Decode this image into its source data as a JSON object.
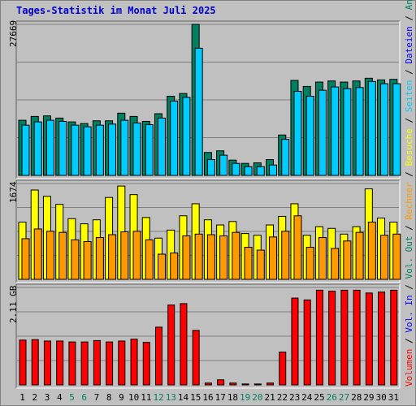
{
  "chart_data": {
    "type": "bar",
    "title": "Tages-Statistik im Monat Juli 2025",
    "x": [
      "1",
      "2",
      "3",
      "4",
      "5",
      "6",
      "7",
      "8",
      "9",
      "10",
      "11",
      "12",
      "13",
      "14",
      "15",
      "16",
      "17",
      "18",
      "19",
      "20",
      "21",
      "22",
      "23",
      "24",
      "25",
      "26",
      "27",
      "28",
      "29",
      "30",
      "31"
    ],
    "weekend_days": [
      "5",
      "6",
      "12",
      "13",
      "19",
      "20",
      "26",
      "27"
    ],
    "panels": [
      {
        "id": "top",
        "max_label": "27669",
        "ylim": [
          0,
          27669
        ],
        "series": [
          {
            "name": "Anfragen",
            "color": "#008060",
            "values": [
              10100,
              10800,
              10900,
              10500,
              9800,
              9500,
              10000,
              10000,
              11400,
              10800,
              9900,
              11300,
              14500,
              15000,
              27669,
              4200,
              4500,
              2800,
              2200,
              2300,
              2900,
              7400,
              17400,
              16300,
              17100,
              17300,
              17100,
              17300,
              17800,
              17500,
              17600
            ]
          },
          {
            "name": "Dateien",
            "color": "#0000ff",
            "values": []
          },
          {
            "name": "Seiten",
            "color": "#00ccff",
            "values": [
              9200,
              9800,
              10100,
              9900,
              9200,
              8900,
              9200,
              9400,
              10100,
              9600,
              9300,
              10500,
              13600,
              14300,
              23300,
              2900,
              3700,
              2200,
              1600,
              1600,
              1900,
              6600,
              15400,
              14500,
              15600,
              16200,
              15900,
              16100,
              17200,
              16800,
              16800
            ]
          }
        ]
      },
      {
        "id": "middle",
        "max_label": "1674",
        "ylim": [
          0,
          1674
        ],
        "series": [
          {
            "name": "Besuche",
            "color": "#ffff00",
            "values": [
              1000,
              1560,
              1450,
              1310,
              1060,
              970,
              1040,
              1430,
              1630,
              1480,
              1080,
              720,
              860,
              1110,
              1320,
              1040,
              950,
              1010,
              800,
              770,
              950,
              1100,
              1320,
              770,
              920,
              890,
              790,
              920,
              1580,
              1070,
              1000
            ]
          },
          {
            "name": "Rechner",
            "color": "#ff9900",
            "values": [
              710,
              880,
              840,
              820,
              690,
              660,
              730,
              780,
              830,
              840,
              690,
              440,
              460,
              760,
              790,
              780,
              760,
              820,
              560,
              510,
              740,
              840,
              1110,
              560,
              730,
              540,
              670,
              820,
              1000,
              770,
              790
            ]
          }
        ]
      },
      {
        "id": "bottom",
        "max_label": "2.11 GB",
        "ylim": [
          0,
          2.11
        ],
        "series": [
          {
            "name": "Vol. In",
            "color": "#0000ff",
            "values": []
          },
          {
            "name": "Vol. Out",
            "color": "#008060",
            "values": []
          },
          {
            "name": "Volumen",
            "color": "#ff0000",
            "values": [
              0.97,
              0.98,
              0.95,
              0.95,
              0.93,
              0.93,
              0.96,
              0.93,
              0.95,
              0.99,
              0.92,
              1.25,
              1.73,
              1.76,
              1.18,
              0.04,
              0.11,
              0.04,
              0.02,
              0.02,
              0.04,
              0.71,
              1.88,
              1.84,
              2.05,
              2.03,
              2.05,
              2.05,
              1.99,
              2.01,
              2.05
            ]
          }
        ]
      }
    ],
    "right_axis_labels": [
      "Volumen",
      "Vol. In",
      "Vol. Out",
      "Rechner",
      "Besuche",
      "Seiten",
      "Dateien",
      "Anfragen"
    ],
    "grid": true
  }
}
